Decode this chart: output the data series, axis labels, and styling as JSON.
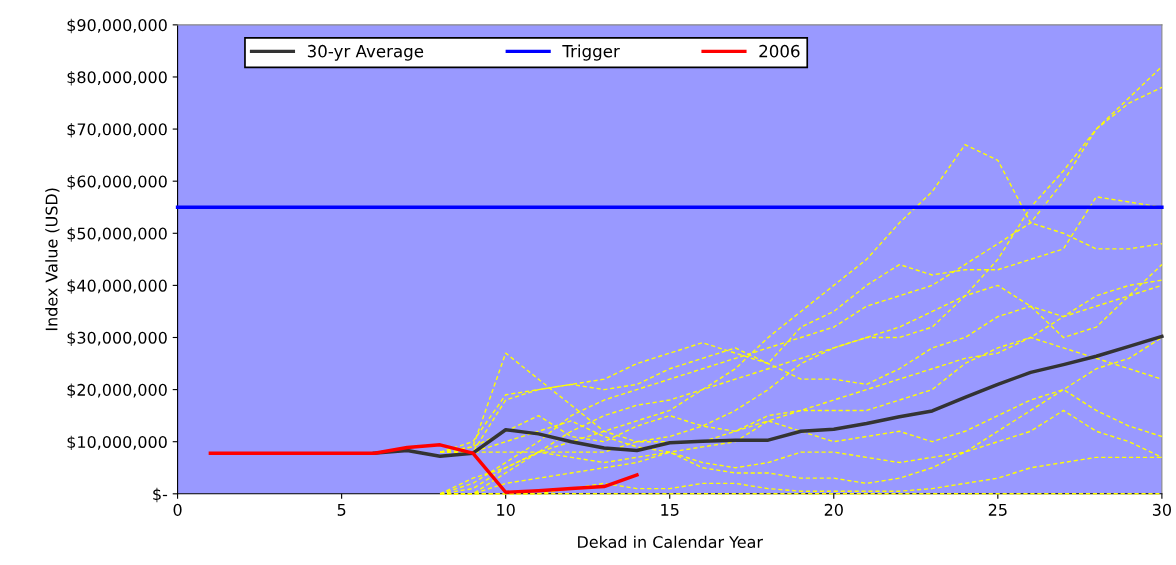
{
  "chart_data": {
    "type": "line",
    "xlabel": "Dekad in Calendar Year",
    "ylabel": "Index Value (USD)",
    "xlim": [
      0,
      30
    ],
    "xticks": [
      0,
      5,
      10,
      15,
      20,
      25,
      30
    ],
    "ylim": [
      0,
      90000000
    ],
    "yticks": [
      {
        "value": 0,
        "label": "$-"
      },
      {
        "value": 10000000,
        "label": "$10,000,000"
      },
      {
        "value": 20000000,
        "label": "$20,000,000"
      },
      {
        "value": 30000000,
        "label": "$30,000,000"
      },
      {
        "value": 40000000,
        "label": "$40,000,000"
      },
      {
        "value": 50000000,
        "label": "$50,000,000"
      },
      {
        "value": 60000000,
        "label": "$60,000,000"
      },
      {
        "value": 70000000,
        "label": "$70,000,000"
      },
      {
        "value": 80000000,
        "label": "$80,000,000"
      },
      {
        "value": 90000000,
        "label": "$90,000,000"
      }
    ],
    "grid": false,
    "legend": "top left",
    "marker": "none",
    "series": [
      {
        "color": "#ffff00",
        "line_style": "dashed",
        "x": [
          8,
          9,
          10,
          11,
          12,
          13,
          14,
          15,
          16,
          17,
          18,
          19,
          20,
          21,
          22,
          23,
          24,
          25,
          26,
          27,
          28,
          29,
          30
        ],
        "values": [
          0,
          1000000.0,
          5000000.0,
          8000000.0,
          10000000.0,
          12000000.0,
          14000000.0,
          16000000.0,
          20000000.0,
          24000000.0,
          30000000.0,
          35000000.0,
          40000000.0,
          45000000.0,
          52000000.0,
          58000000.0,
          67000000.0,
          64000000.0,
          52000000.0,
          50000000.0,
          47000000.0,
          47000000.0,
          48000000.0
        ]
      },
      {
        "color": "#ffff00",
        "line_style": "dashed",
        "x": [
          8,
          9,
          10,
          11,
          12,
          13,
          14,
          15,
          16,
          17,
          18,
          19,
          20,
          21,
          22,
          23,
          24,
          25,
          26,
          27,
          28,
          29,
          30
        ],
        "values": [
          0,
          2000000.0,
          6000000.0,
          10000000.0,
          15000000.0,
          18000000.0,
          20000000.0,
          22000000.0,
          24000000.0,
          26000000.0,
          28000000.0,
          30000000.0,
          32000000.0,
          36000000.0,
          38000000.0,
          40000000.0,
          44000000.0,
          48000000.0,
          52000000.0,
          60000000.0,
          70000000.0,
          76000000.0,
          82000000.0
        ]
      },
      {
        "color": "#ffff00",
        "line_style": "dashed",
        "x": [
          8,
          9,
          10,
          11,
          12,
          13,
          14,
          15,
          16,
          17,
          18,
          19,
          20,
          21,
          22,
          23,
          24,
          25,
          26,
          27,
          28,
          29,
          30
        ],
        "values": [
          0,
          0,
          4000000.0,
          8000000.0,
          12000000.0,
          15000000.0,
          17000000.0,
          18000000.0,
          20000000.0,
          22000000.0,
          24000000.0,
          26000000.0,
          28000000.0,
          30000000.0,
          30000000.0,
          32000000.0,
          38000000.0,
          45000000.0,
          55000000.0,
          62000000.0,
          70000000.0,
          75000000.0,
          78000000.0
        ]
      },
      {
        "color": "#ffff00",
        "line_style": "dashed",
        "x": [
          8,
          9,
          10,
          11,
          12,
          13,
          14,
          15,
          16,
          17,
          18,
          19,
          20,
          21,
          22,
          23,
          24,
          25,
          26,
          27,
          28,
          29,
          30
        ],
        "values": [
          8000000.0,
          10000000.0,
          19000000.0,
          20000000.0,
          21000000.0,
          22000000.0,
          25000000.0,
          27000000.0,
          29000000.0,
          27000000.0,
          25000000.0,
          32000000.0,
          35000000.0,
          40000000.0,
          44000000.0,
          42000000.0,
          43000000.0,
          43000000.0,
          45000000.0,
          47000000.0,
          57000000.0,
          56000000.0,
          55000000.0
        ]
      },
      {
        "color": "#ffff00",
        "line_style": "dashed",
        "x": [
          8,
          9,
          10,
          11,
          12,
          13,
          14,
          15,
          16,
          17,
          18,
          19,
          20,
          21,
          22,
          23,
          24,
          25,
          26,
          27,
          28,
          29,
          30
        ],
        "values": [
          8000000.0,
          9000000.0,
          27000000.0,
          22000000.0,
          17000000.0,
          12000000.0,
          10000000.0,
          11000000.0,
          13000000.0,
          16000000.0,
          20000000.0,
          25000000.0,
          28000000.0,
          30000000.0,
          32000000.0,
          35000000.0,
          38000000.0,
          40000000.0,
          36000000.0,
          30000000.0,
          32000000.0,
          38000000.0,
          44000000.0
        ]
      },
      {
        "color": "#ffff00",
        "line_style": "dashed",
        "x": [
          8,
          9,
          10,
          11,
          12,
          13,
          14,
          15,
          16,
          17,
          18,
          19,
          20,
          21,
          22,
          23,
          24,
          25,
          26,
          27,
          28,
          29,
          30
        ],
        "values": [
          8000000.0,
          8000000.0,
          18000000.0,
          20000000.0,
          21000000.0,
          20000000.0,
          21000000.0,
          24000000.0,
          26000000.0,
          28000000.0,
          25000000.0,
          22000000.0,
          22000000.0,
          21000000.0,
          24000000.0,
          28000000.0,
          30000000.0,
          34000000.0,
          36000000.0,
          34000000.0,
          38000000.0,
          40000000.0,
          41000000.0
        ]
      },
      {
        "color": "#ffff00",
        "line_style": "dashed",
        "x": [
          8,
          9,
          10,
          11,
          12,
          13,
          14,
          15,
          16,
          17,
          18,
          19,
          20,
          21,
          22,
          23,
          24,
          25,
          26,
          27,
          28,
          29,
          30
        ],
        "values": [
          8000000.0,
          9000000.0,
          12000000.0,
          15000000.0,
          11000000.0,
          10000000.0,
          13000000.0,
          15000000.0,
          13000000.0,
          12000000.0,
          15000000.0,
          16000000.0,
          16000000.0,
          16000000.0,
          18000000.0,
          20000000.0,
          25000000.0,
          28000000.0,
          30000000.0,
          28000000.0,
          26000000.0,
          24000000.0,
          22000000.0
        ]
      },
      {
        "color": "#ffff00",
        "line_style": "dashed",
        "x": [
          8,
          9,
          10,
          11,
          12,
          13,
          14,
          15,
          16,
          17,
          18,
          19,
          20,
          21,
          22,
          23,
          24,
          25,
          26,
          27,
          28,
          29,
          30
        ],
        "values": [
          8000000.0,
          8000000.0,
          8000000.0,
          8000000.0,
          8000000.0,
          8000000.0,
          10000000.0,
          10000000.0,
          10000000.0,
          12000000.0,
          14000000.0,
          12000000.0,
          10000000.0,
          11000000.0,
          12000000.0,
          10000000.0,
          12000000.0,
          15000000.0,
          18000000.0,
          20000000.0,
          16000000.0,
          13000000.0,
          11000000.0
        ]
      },
      {
        "color": "#ffff00",
        "line_style": "dashed",
        "x": [
          8,
          9,
          10,
          11,
          12,
          13,
          14,
          15,
          16,
          17,
          18,
          19,
          20,
          21,
          22,
          23,
          24,
          25,
          26,
          27,
          28,
          29,
          30
        ],
        "values": [
          0,
          0,
          2000000.0,
          3000000.0,
          4000000.0,
          5000000.0,
          6000000.0,
          8000000.0,
          5000000.0,
          4000000.0,
          4000000.0,
          3000000.0,
          3000000.0,
          2000000.0,
          3000000.0,
          5000000.0,
          8000000.0,
          10000000.0,
          12000000.0,
          16000000.0,
          12000000.0,
          10000000.0,
          7000000.0
        ]
      },
      {
        "color": "#ffff00",
        "line_style": "dashed",
        "x": [
          8,
          9,
          10,
          11,
          12,
          13,
          14,
          15,
          16,
          17,
          18,
          19,
          20,
          21,
          22,
          23,
          24,
          25,
          26,
          27,
          28,
          29,
          30
        ],
        "values": [
          0,
          0,
          0,
          0,
          1000000.0,
          2000000.0,
          1000000.0,
          1000000.0,
          2000000.0,
          2000000.0,
          1000000.0,
          500000.0,
          500000.0,
          500000.0,
          500000.0,
          1000000.0,
          2000000.0,
          3000000.0,
          5000000.0,
          6000000.0,
          7000000.0,
          7000000.0,
          7000000.0
        ]
      },
      {
        "color": "#ffff00",
        "line_style": "dashed",
        "x": [
          8,
          9,
          10,
          11,
          12,
          13,
          14,
          15,
          16,
          17,
          18,
          19,
          20,
          21,
          22,
          23,
          24,
          25,
          26,
          27,
          28,
          29,
          30
        ],
        "values": [
          0,
          0,
          0,
          0,
          0,
          0,
          0,
          0,
          0,
          0,
          0,
          0,
          0,
          0,
          0,
          0,
          0,
          0,
          0,
          0,
          0,
          0,
          0
        ]
      },
      {
        "color": "#ffff00",
        "line_style": "dashed",
        "x": [
          8,
          9,
          10,
          11,
          12,
          13,
          14,
          15,
          16,
          17,
          18,
          19,
          20,
          21,
          22,
          23,
          24,
          25,
          26,
          27,
          28,
          29,
          30
        ],
        "values": [
          8000000.0,
          8000000.0,
          10000000.0,
          12000000.0,
          14000000.0,
          11000000.0,
          9000000.0,
          8000000.0,
          9000000.0,
          10000000.0,
          14000000.0,
          16000000.0,
          18000000.0,
          20000000.0,
          22000000.0,
          24000000.0,
          26000000.0,
          27000000.0,
          30000000.0,
          34000000.0,
          36000000.0,
          38000000.0,
          40000000.0
        ]
      },
      {
        "color": "#ffff00",
        "line_style": "dashed",
        "x": [
          8,
          9,
          10,
          11,
          12,
          13,
          14,
          15,
          16,
          17,
          18,
          19,
          20,
          21,
          22,
          23,
          24,
          25,
          26,
          27,
          28,
          29,
          30
        ],
        "values": [
          0,
          3000000.0,
          5000000.0,
          8000000.0,
          7000000.0,
          6000000.0,
          7000000.0,
          8000000.0,
          6000000.0,
          5000000.0,
          6000000.0,
          8000000.0,
          8000000.0,
          7000000.0,
          6000000.0,
          7000000.0,
          8000000.0,
          12000000.0,
          16000000.0,
          20000000.0,
          24000000.0,
          26000000.0,
          30000000.0
        ]
      },
      {
        "name": "30-yr Average",
        "color": "#333333",
        "line_style": "solid",
        "x": [
          6,
          7,
          8,
          9,
          10,
          11,
          12,
          13,
          14,
          15,
          16,
          17,
          18,
          19,
          20,
          21,
          22,
          23,
          24,
          25,
          26,
          27,
          28,
          29,
          30
        ],
        "values": [
          7800000.0,
          8300000.0,
          7200000.0,
          7800000.0,
          12300000.0,
          11500000.0,
          10000000.0,
          8800000.0,
          8300000.0,
          9800000.0,
          10100000.0,
          10300000.0,
          10300000.0,
          12000000.0,
          12400000.0,
          13500000.0,
          14800000.0,
          15900000.0,
          18500000.0,
          21000000.0,
          23300000.0,
          24800000.0,
          26400000.0,
          28300000.0,
          30200000.0
        ]
      },
      {
        "name": "Trigger",
        "color": "#0000ff",
        "line_style": "solid",
        "x": [
          0,
          30
        ],
        "values": [
          55000000.0,
          55000000.0
        ]
      },
      {
        "name": "2006",
        "color": "#ff0000",
        "line_style": "solid",
        "x": [
          1,
          2,
          3,
          4,
          5,
          6,
          7,
          8,
          9,
          10,
          11,
          12,
          13,
          14
        ],
        "values": [
          7800000.0,
          7800000.0,
          7800000.0,
          7800000.0,
          7800000.0,
          7800000.0,
          8900000.0,
          9400000.0,
          7800000.0,
          300000.0,
          600000.0,
          1000000.0,
          1400000.0,
          3600000.0
        ]
      }
    ]
  }
}
